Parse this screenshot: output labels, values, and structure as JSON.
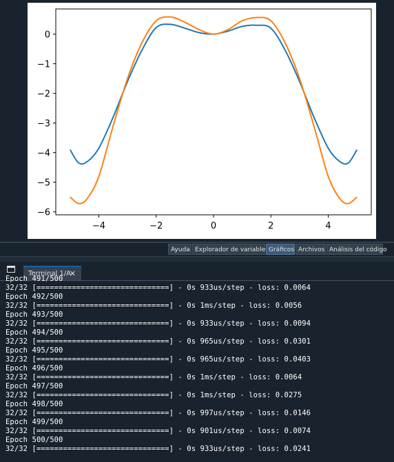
{
  "plot": {
    "x_ticks": [
      "−4",
      "−2",
      "0",
      "2",
      "4"
    ],
    "y_ticks": [
      "0",
      "−1",
      "−2",
      "−3",
      "−4",
      "−5",
      "−6"
    ],
    "series_colors": [
      "#1f77b4",
      "#ff7f0e"
    ]
  },
  "chart_data": {
    "type": "line",
    "xlim": [
      -5.5,
      5.5
    ],
    "ylim": [
      -6.1,
      0.85
    ],
    "xticks": [
      -4,
      -2,
      0,
      2,
      4
    ],
    "yticks": [
      0,
      -1,
      -2,
      -3,
      -4,
      -5,
      -6
    ],
    "series": [
      {
        "color": "#1f77b4",
        "x": [
          -5,
          -4.7,
          -4.4,
          -4,
          -3.5,
          -3,
          -2.5,
          -2,
          -1.5,
          -1,
          -0.5,
          0,
          0.5,
          1,
          1.5,
          2,
          2.5,
          3,
          3.5,
          4,
          4.4,
          4.7,
          5
        ],
        "y": [
          -3.9,
          -4.35,
          -4.3,
          -3.85,
          -2.8,
          -1.6,
          -0.55,
          0.22,
          0.33,
          0.2,
          0.05,
          0.0,
          0.1,
          0.26,
          0.3,
          0.2,
          -0.55,
          -1.6,
          -2.8,
          -3.85,
          -4.3,
          -4.35,
          -3.9
        ]
      },
      {
        "color": "#ff7f0e",
        "x": [
          -5,
          -4.7,
          -4.4,
          -4,
          -3.5,
          -3,
          -2.5,
          -2,
          -1.5,
          -1,
          -0.5,
          0,
          0.5,
          1,
          1.5,
          2,
          2.5,
          3,
          3.5,
          4,
          4.4,
          4.7,
          5
        ],
        "y": [
          -5.5,
          -5.72,
          -5.55,
          -4.8,
          -3.1,
          -1.5,
          -0.3,
          0.45,
          0.58,
          0.4,
          0.15,
          0.0,
          0.15,
          0.45,
          0.56,
          0.45,
          -0.3,
          -1.5,
          -3.1,
          -4.8,
          -5.55,
          -5.72,
          -5.5
        ]
      }
    ]
  },
  "plot_tabs": [
    {
      "label": "Ayuda",
      "active": false
    },
    {
      "label": "Explorador de variables",
      "active": false
    },
    {
      "label": "Gráficos",
      "active": true
    },
    {
      "label": "Archivos",
      "active": false
    },
    {
      "label": "Análisis del código",
      "active": false
    }
  ],
  "console": {
    "tab_label": "Terminal 1/A",
    "close_glyph": "✕",
    "lines": [
      "Epoch 491/500",
      "32/32 [==============================] - 0s 933us/step - loss: 0.0064",
      "Epoch 492/500",
      "32/32 [==============================] - 0s 1ms/step - loss: 0.0056",
      "Epoch 493/500",
      "32/32 [==============================] - 0s 933us/step - loss: 0.0094",
      "Epoch 494/500",
      "32/32 [==============================] - 0s 965us/step - loss: 0.0301",
      "Epoch 495/500",
      "32/32 [==============================] - 0s 965us/step - loss: 0.0403",
      "Epoch 496/500",
      "32/32 [==============================] - 0s 1ms/step - loss: 0.0064",
      "Epoch 497/500",
      "32/32 [==============================] - 0s 1ms/step - loss: 0.0275",
      "Epoch 498/500",
      "32/32 [==============================] - 0s 997us/step - loss: 0.0146",
      "Epoch 499/500",
      "32/32 [==============================] - 0s 901us/step - loss: 0.0074",
      "Epoch 500/500",
      "32/32 [==============================] - 0s 933us/step - loss: 0.0241"
    ]
  }
}
